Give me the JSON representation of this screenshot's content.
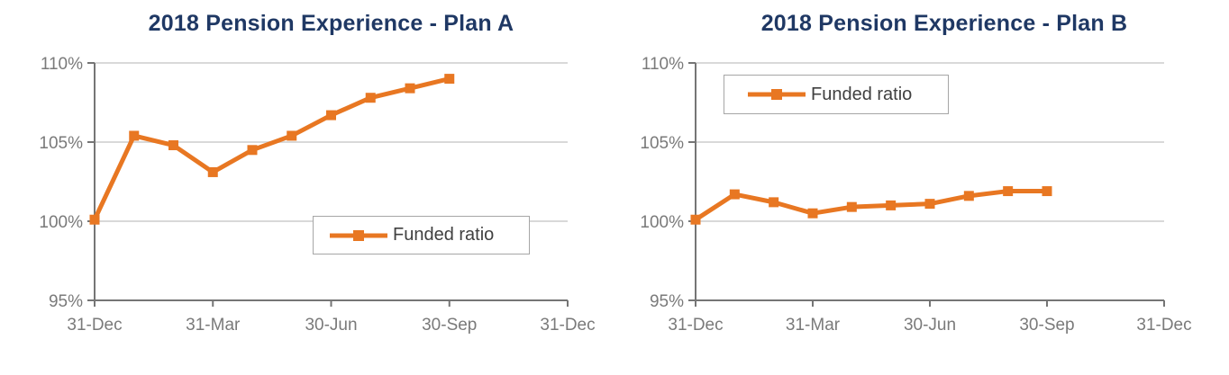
{
  "colors": {
    "accent_orange": "#E87722",
    "title_navy": "#1F3864",
    "axis_text": "#7A7A7A",
    "legend_text": "#404040",
    "gridline": "#D9D9D9",
    "axis_line": "#757575",
    "legend_border": "#A6A6A6",
    "background": "#FFFFFF"
  },
  "chart_data": [
    {
      "type": "line",
      "title": "2018 Pension Experience - Plan A",
      "xlabel": "",
      "ylabel": "",
      "ylim": [
        95,
        110
      ],
      "y_tick_values": [
        95,
        100,
        105,
        110
      ],
      "y_tick_labels": [
        "95%",
        "100%",
        "105%",
        "110%"
      ],
      "x_range_months": [
        0,
        12
      ],
      "x_tick_months": [
        0,
        3,
        6,
        9,
        12
      ],
      "x_tick_labels": [
        "31-Dec",
        "31-Mar",
        "30-Jun",
        "30-Sep",
        "31-Dec"
      ],
      "grid": "horizontal",
      "legend": {
        "position": "inside-bottom-right",
        "entries": [
          "Funded ratio"
        ]
      },
      "series": [
        {
          "name": "Funded ratio",
          "color": "#E87722",
          "marker": "square",
          "x_months": [
            0,
            1,
            2,
            3,
            4,
            5,
            6,
            7,
            8,
            9
          ],
          "values_pct": [
            100.1,
            105.4,
            104.8,
            103.1,
            104.5,
            105.4,
            106.7,
            107.8,
            108.4,
            109.0
          ]
        }
      ]
    },
    {
      "type": "line",
      "title": "2018 Pension Experience - Plan B",
      "xlabel": "",
      "ylabel": "",
      "ylim": [
        95,
        110
      ],
      "y_tick_values": [
        95,
        100,
        105,
        110
      ],
      "y_tick_labels": [
        "95%",
        "100%",
        "105%",
        "110%"
      ],
      "x_range_months": [
        0,
        12
      ],
      "x_tick_months": [
        0,
        3,
        6,
        9,
        12
      ],
      "x_tick_labels": [
        "31-Dec",
        "31-Mar",
        "30-Jun",
        "30-Sep",
        "31-Dec"
      ],
      "grid": "horizontal",
      "legend": {
        "position": "inside-top-left",
        "entries": [
          "Funded ratio"
        ]
      },
      "series": [
        {
          "name": "Funded ratio",
          "color": "#E87722",
          "marker": "square",
          "x_months": [
            0,
            1,
            2,
            3,
            4,
            5,
            6,
            7,
            8,
            9
          ],
          "values_pct": [
            100.1,
            101.7,
            101.2,
            100.5,
            100.9,
            101.0,
            101.1,
            101.6,
            101.9,
            101.9
          ]
        }
      ]
    }
  ]
}
